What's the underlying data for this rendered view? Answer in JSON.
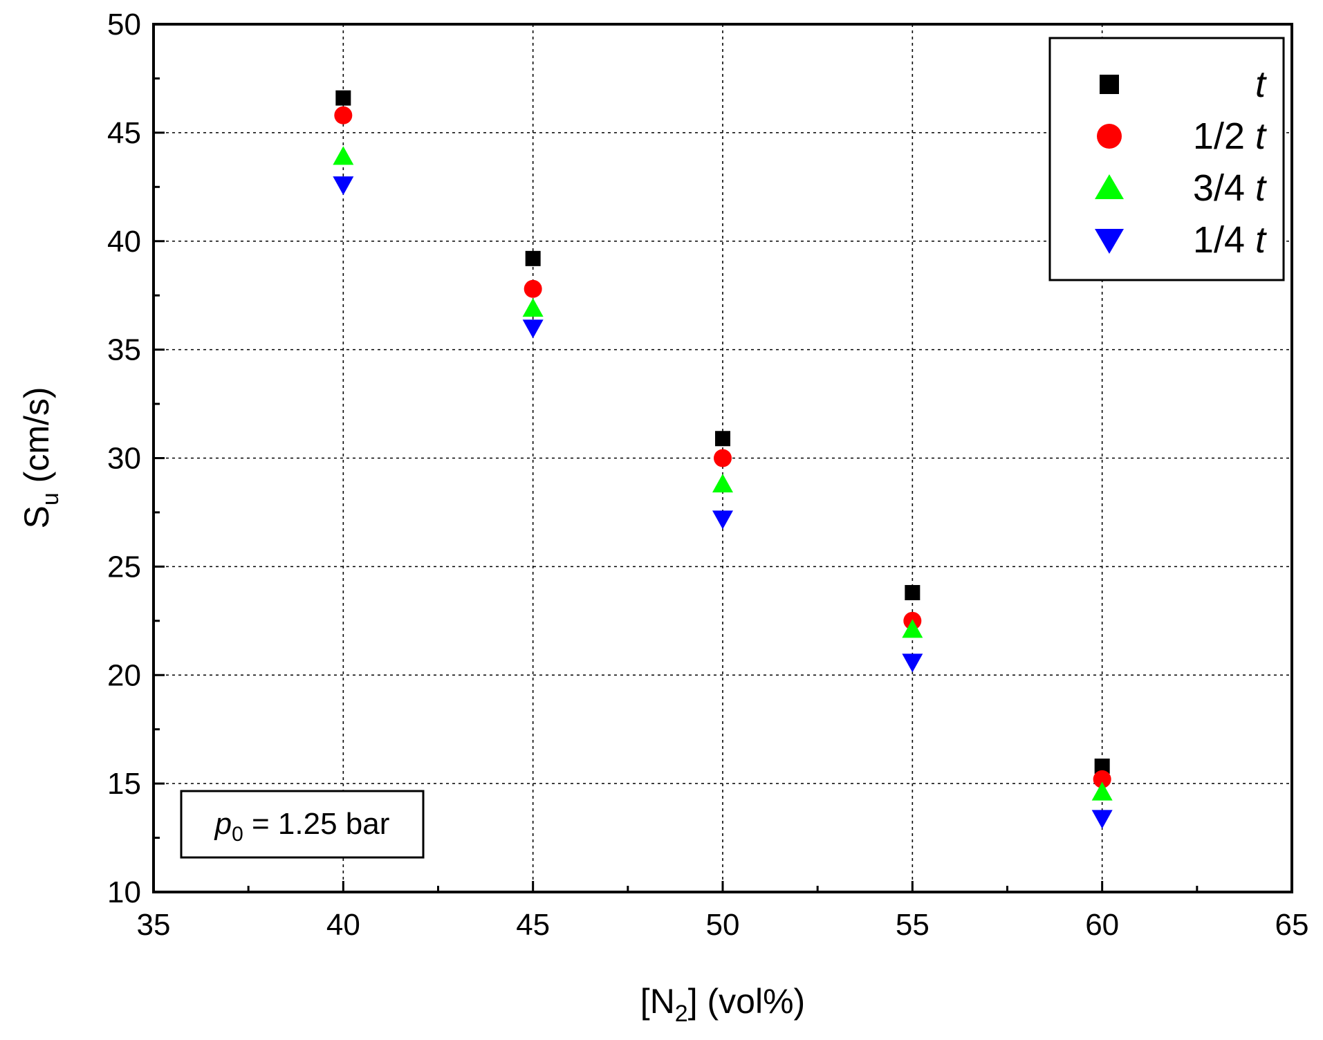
{
  "chart_data": {
    "type": "scatter",
    "title": "",
    "xlabel": {
      "main": "[N",
      "sub": "2",
      "tail": "] (vol%)"
    },
    "ylabel": {
      "main": "S",
      "sub": "u",
      "tail": " (cm/s)"
    },
    "xlim": [
      35,
      65
    ],
    "ylim": [
      10,
      50
    ],
    "xticks": [
      35,
      40,
      45,
      50,
      55,
      60,
      65
    ],
    "yticks": [
      10,
      15,
      20,
      25,
      30,
      35,
      40,
      45,
      50
    ],
    "grid": true,
    "x": [
      40,
      45,
      50,
      55,
      60
    ],
    "series": [
      {
        "name": "t",
        "prefix": "",
        "italic": "t",
        "marker": "square",
        "color": "#000000",
        "values": [
          46.6,
          39.2,
          30.9,
          23.8,
          15.8
        ]
      },
      {
        "name": "1/2 t",
        "prefix": "1/2 ",
        "italic": "t",
        "marker": "circle",
        "color": "#ff0000",
        "values": [
          45.8,
          37.8,
          30.0,
          22.5,
          15.2
        ]
      },
      {
        "name": "3/4 t",
        "prefix": "3/4 ",
        "italic": "t",
        "marker": "triangle-up",
        "color": "#00ff00",
        "values": [
          43.9,
          36.9,
          28.8,
          22.1,
          14.6
        ]
      },
      {
        "name": "1/4 t",
        "prefix": "1/4 ",
        "italic": "t",
        "marker": "triangle-down",
        "color": "#0000ff",
        "values": [
          42.6,
          36.0,
          27.2,
          20.6,
          13.4
        ]
      }
    ],
    "legend_position": "top-right",
    "annotation": {
      "italic": "p",
      "sub": "0",
      "tail": " = 1.25 bar"
    }
  }
}
